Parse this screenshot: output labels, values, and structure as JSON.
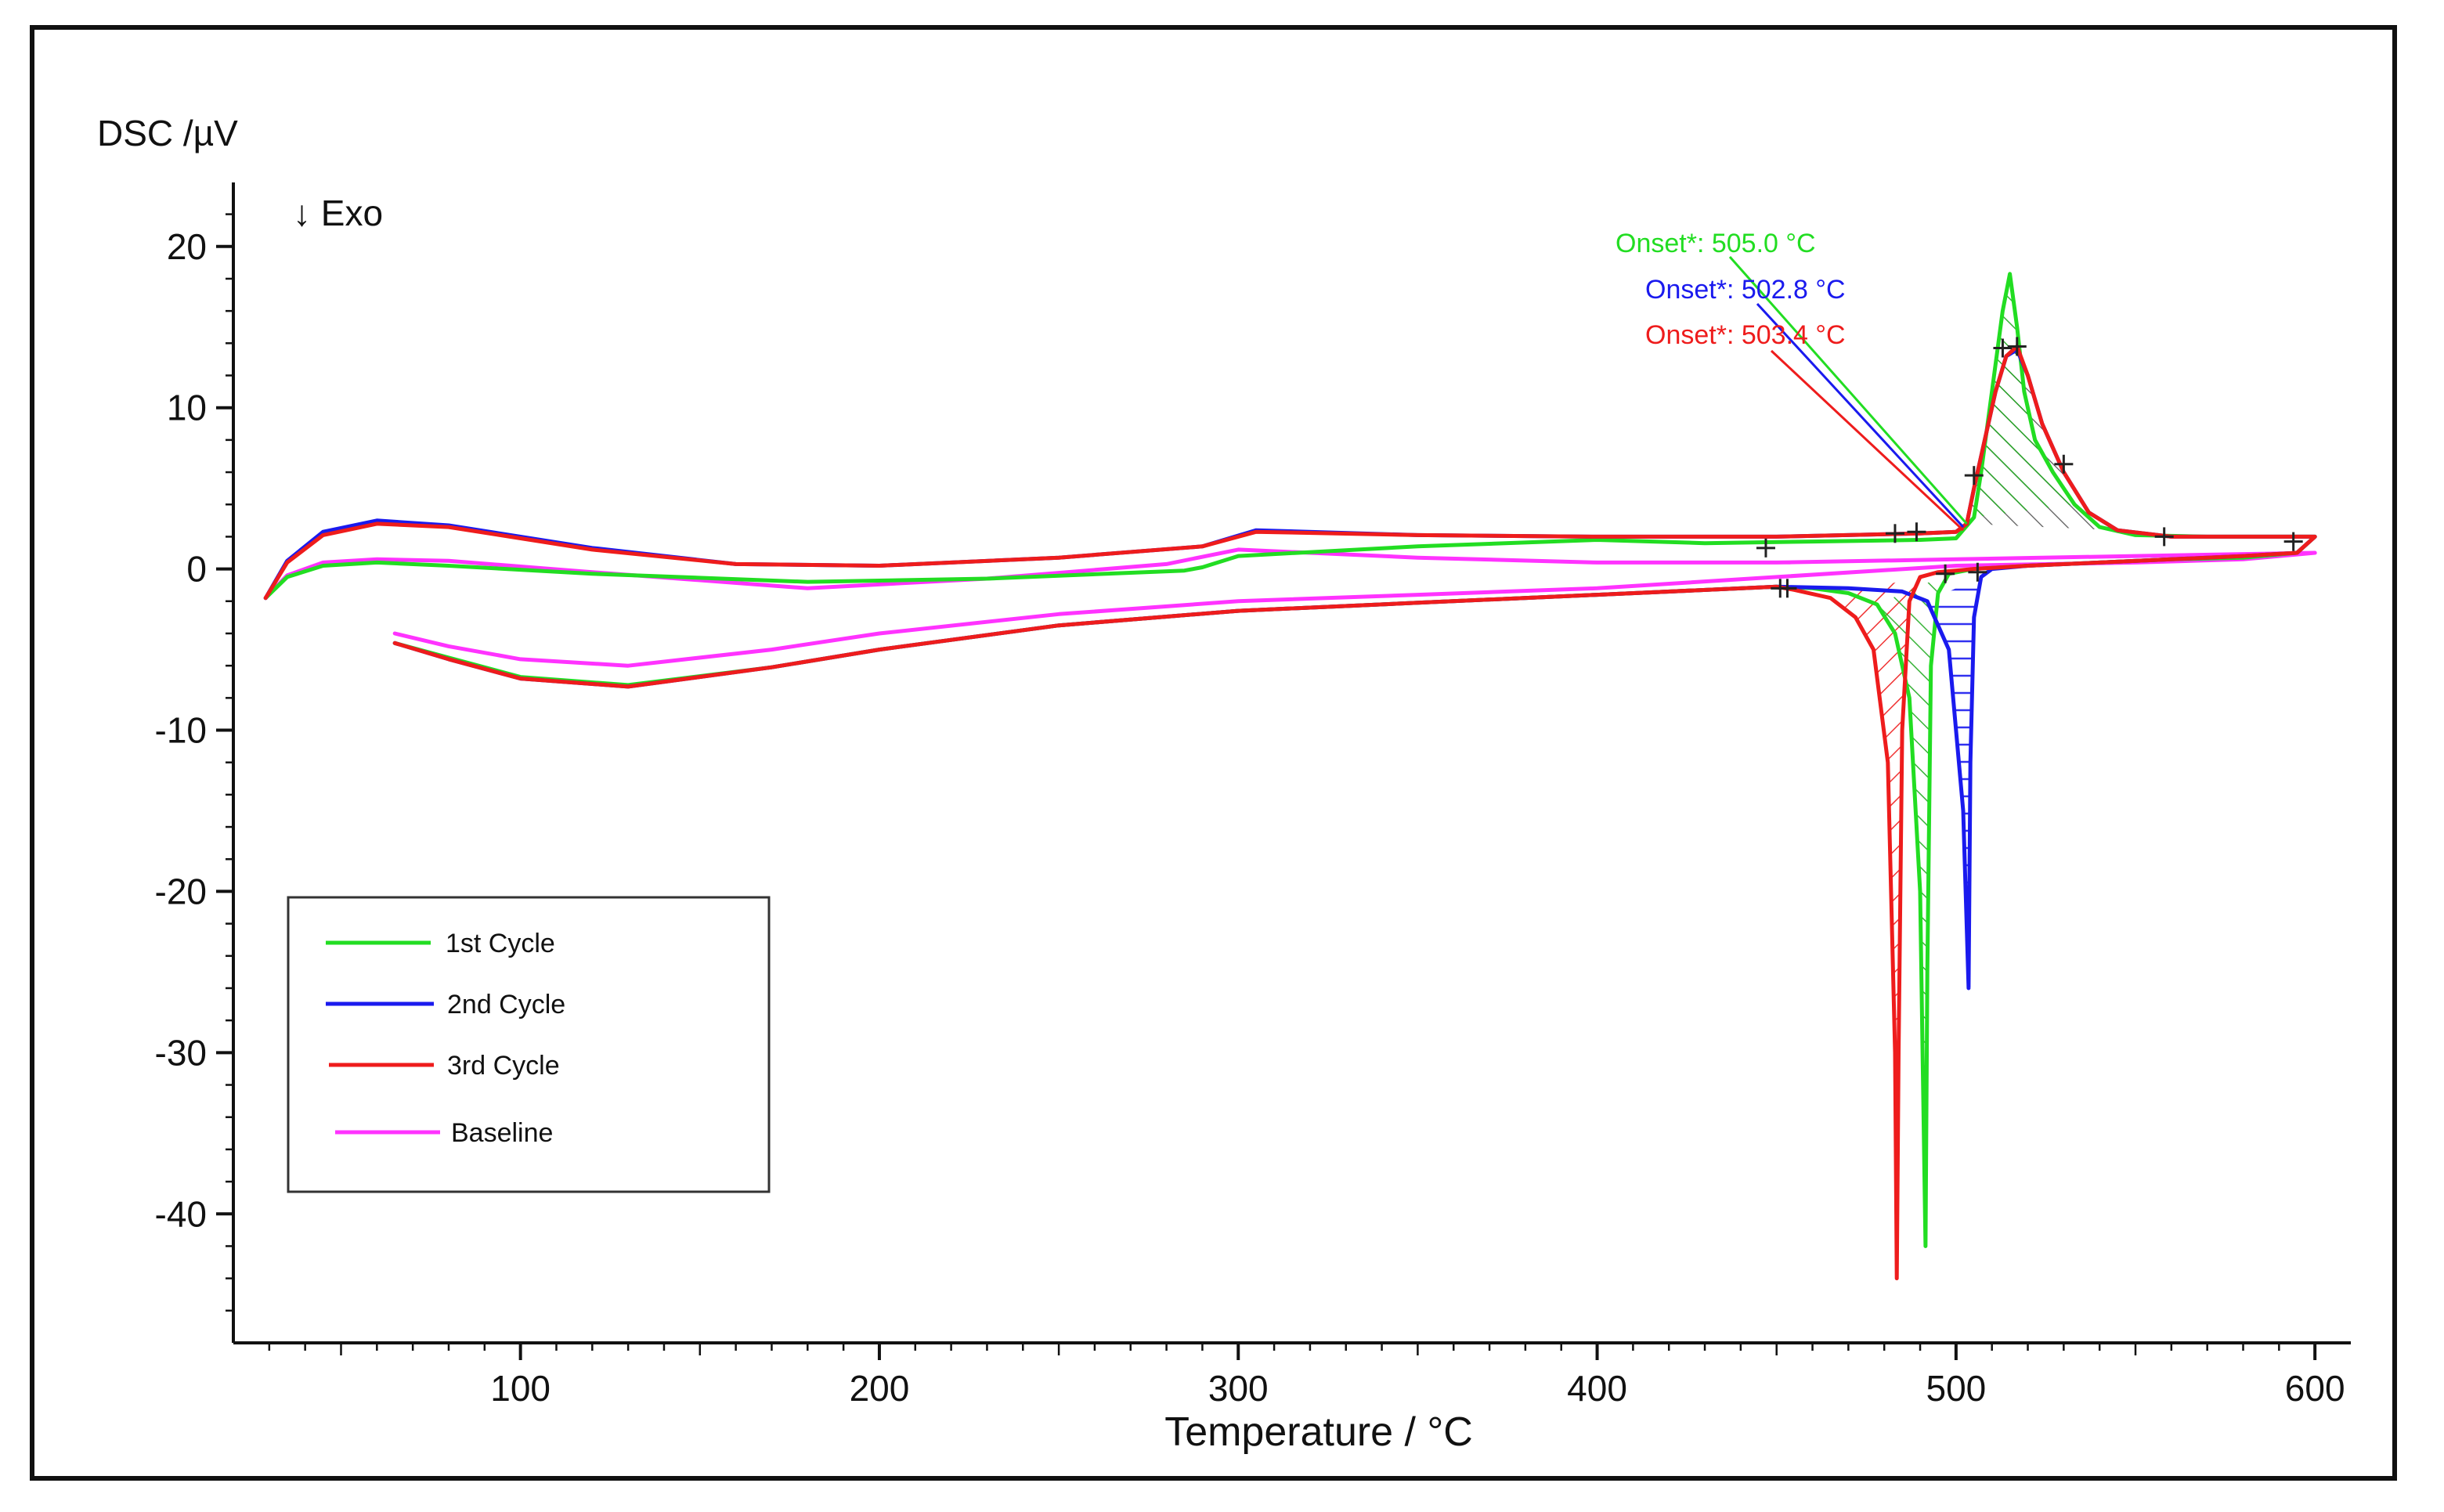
{
  "chart_data": {
    "type": "line",
    "title": "",
    "xlabel": "Temperature / °C",
    "ylabel": "DSC /µV",
    "annotation_exo": "↓ Exo",
    "xlim": [
      20,
      610
    ],
    "ylim": [
      -48,
      23
    ],
    "xticks": [
      100,
      200,
      300,
      400,
      500,
      600
    ],
    "yticks": [
      20,
      10,
      0,
      -10,
      -20,
      -30,
      -40
    ],
    "colors": {
      "first": "#22dd22",
      "second": "#1a1aee",
      "third": "#ee1c1c",
      "baseline": "#ff33ff"
    },
    "legend": {
      "placement": "lower-left",
      "entries": [
        "1st Cycle",
        "2nd Cycle",
        "3rd Cycle",
        "Baseline"
      ]
    },
    "annotations": [
      {
        "text": "Onset*: 505.0 °C",
        "series": "1st Cycle",
        "x": 503,
        "y": 2.8
      },
      {
        "text": "Onset*: 502.8 °C",
        "series": "2nd Cycle",
        "x": 502,
        "y": 2.6
      },
      {
        "text": "Onset*: 503.4 °C",
        "series": "3rd Cycle",
        "x": 502,
        "y": 2.4
      }
    ],
    "series": [
      {
        "name": "1st Cycle",
        "heating": [
          [
            29,
            -1.8
          ],
          [
            35,
            -0.5
          ],
          [
            45,
            0.2
          ],
          [
            60,
            0.4
          ],
          [
            80,
            0.2
          ],
          [
            120,
            -0.3
          ],
          [
            180,
            -0.8
          ],
          [
            230,
            -0.6
          ],
          [
            285,
            -0.1
          ],
          [
            290,
            0.1
          ],
          [
            300,
            0.8
          ],
          [
            350,
            1.4
          ],
          [
            400,
            1.8
          ],
          [
            430,
            1.6
          ],
          [
            460,
            1.7
          ],
          [
            490,
            1.8
          ],
          [
            500,
            1.9
          ],
          [
            505,
            3.2
          ],
          [
            507,
            6
          ],
          [
            510,
            11
          ],
          [
            513,
            16
          ],
          [
            515,
            18.3
          ],
          [
            517,
            15
          ],
          [
            519,
            11
          ],
          [
            522,
            8
          ],
          [
            527,
            6
          ],
          [
            533,
            4
          ],
          [
            540,
            2.6
          ],
          [
            550,
            2.1
          ],
          [
            570,
            2
          ],
          [
            600,
            2
          ]
        ],
        "cooling": [
          [
            600,
            2
          ],
          [
            595,
            1
          ],
          [
            580,
            0.7
          ],
          [
            560,
            0.6
          ],
          [
            540,
            0.4
          ],
          [
            520,
            0.2
          ],
          [
            505,
            0
          ],
          [
            498,
            -0.3
          ],
          [
            495,
            -1.5
          ],
          [
            493,
            -6
          ],
          [
            492,
            -25
          ],
          [
            491.5,
            -42
          ],
          [
            490,
            -20
          ],
          [
            487,
            -8
          ],
          [
            483,
            -4
          ],
          [
            478,
            -2.2
          ],
          [
            470,
            -1.5
          ],
          [
            460,
            -1.2
          ],
          [
            450,
            -1.1
          ],
          [
            400,
            -1.6
          ],
          [
            350,
            -2.1
          ],
          [
            300,
            -2.6
          ],
          [
            250,
            -3.5
          ],
          [
            200,
            -5
          ],
          [
            170,
            -6.1
          ],
          [
            130,
            -7.2
          ],
          [
            100,
            -6.7
          ],
          [
            80,
            -5.5
          ],
          [
            65,
            -4.6
          ]
        ]
      },
      {
        "name": "2nd Cycle",
        "heating": [
          [
            29,
            -1.8
          ],
          [
            35,
            0.5
          ],
          [
            45,
            2.3
          ],
          [
            60,
            3
          ],
          [
            80,
            2.7
          ],
          [
            120,
            1.3
          ],
          [
            160,
            0.3
          ],
          [
            200,
            0.2
          ],
          [
            250,
            0.7
          ],
          [
            290,
            1.4
          ],
          [
            305,
            2.4
          ],
          [
            350,
            2.1
          ],
          [
            400,
            2
          ],
          [
            450,
            2
          ],
          [
            490,
            2.2
          ],
          [
            500,
            2.3
          ],
          [
            503,
            2.8
          ],
          [
            505,
            5
          ],
          [
            508,
            8
          ],
          [
            511,
            11
          ],
          [
            514,
            13.2
          ],
          [
            517,
            13.6
          ],
          [
            520,
            12
          ],
          [
            524,
            9
          ],
          [
            530,
            6
          ],
          [
            537,
            3.5
          ],
          [
            545,
            2.4
          ],
          [
            560,
            2
          ],
          [
            580,
            2
          ],
          [
            600,
            2
          ]
        ],
        "cooling": [
          [
            600,
            2
          ],
          [
            595,
            1
          ],
          [
            580,
            0.8
          ],
          [
            560,
            0.6
          ],
          [
            540,
            0.4
          ],
          [
            520,
            0.2
          ],
          [
            510,
            0
          ],
          [
            507,
            -0.5
          ],
          [
            505,
            -3
          ],
          [
            504,
            -12
          ],
          [
            503.5,
            -26
          ],
          [
            502,
            -15
          ],
          [
            498,
            -5
          ],
          [
            492,
            -2
          ],
          [
            485,
            -1.4
          ],
          [
            470,
            -1.2
          ],
          [
            450,
            -1.1
          ],
          [
            400,
            -1.6
          ],
          [
            350,
            -2.1
          ],
          [
            300,
            -2.6
          ],
          [
            250,
            -3.5
          ],
          [
            200,
            -5
          ],
          [
            170,
            -6.1
          ],
          [
            130,
            -7.3
          ],
          [
            100,
            -6.8
          ],
          [
            80,
            -5.6
          ],
          [
            65,
            -4.6
          ]
        ]
      },
      {
        "name": "3rd Cycle",
        "heating": [
          [
            29,
            -1.8
          ],
          [
            35,
            0.4
          ],
          [
            45,
            2.1
          ],
          [
            60,
            2.8
          ],
          [
            80,
            2.6
          ],
          [
            120,
            1.2
          ],
          [
            160,
            0.3
          ],
          [
            200,
            0.2
          ],
          [
            250,
            0.7
          ],
          [
            290,
            1.4
          ],
          [
            305,
            2.3
          ],
          [
            350,
            2.1
          ],
          [
            400,
            2
          ],
          [
            450,
            2
          ],
          [
            490,
            2.2
          ],
          [
            500,
            2.3
          ],
          [
            503,
            2.8
          ],
          [
            505,
            5
          ],
          [
            508,
            8
          ],
          [
            511,
            11
          ],
          [
            514,
            13.2
          ],
          [
            517,
            13.8
          ],
          [
            520,
            12
          ],
          [
            524,
            9
          ],
          [
            530,
            6
          ],
          [
            537,
            3.5
          ],
          [
            545,
            2.4
          ],
          [
            560,
            2
          ],
          [
            580,
            2
          ],
          [
            600,
            2
          ]
        ],
        "cooling": [
          [
            600,
            2
          ],
          [
            595,
            1
          ],
          [
            580,
            0.8
          ],
          [
            560,
            0.6
          ],
          [
            540,
            0.4
          ],
          [
            520,
            0.2
          ],
          [
            505,
            0
          ],
          [
            495,
            -0.2
          ],
          [
            490,
            -0.5
          ],
          [
            487,
            -2
          ],
          [
            485,
            -10
          ],
          [
            484,
            -30
          ],
          [
            483.5,
            -44
          ],
          [
            483,
            -30
          ],
          [
            481,
            -12
          ],
          [
            477,
            -5
          ],
          [
            472,
            -3
          ],
          [
            465,
            -1.8
          ],
          [
            455,
            -1.3
          ],
          [
            450,
            -1.1
          ],
          [
            400,
            -1.6
          ],
          [
            350,
            -2.1
          ],
          [
            300,
            -2.6
          ],
          [
            250,
            -3.5
          ],
          [
            200,
            -5
          ],
          [
            170,
            -6.1
          ],
          [
            130,
            -7.3
          ],
          [
            100,
            -6.8
          ],
          [
            80,
            -5.6
          ],
          [
            65,
            -4.6
          ]
        ]
      },
      {
        "name": "Baseline",
        "heating": [
          [
            29,
            -1.8
          ],
          [
            35,
            -0.4
          ],
          [
            45,
            0.4
          ],
          [
            60,
            0.6
          ],
          [
            80,
            0.5
          ],
          [
            120,
            -0.2
          ],
          [
            180,
            -1.2
          ],
          [
            230,
            -0.6
          ],
          [
            280,
            0.3
          ],
          [
            300,
            1.2
          ],
          [
            350,
            0.7
          ],
          [
            400,
            0.4
          ],
          [
            450,
            0.4
          ],
          [
            500,
            0.6
          ],
          [
            550,
            0.8
          ],
          [
            600,
            1
          ]
        ],
        "cooling": [
          [
            600,
            1
          ],
          [
            580,
            0.6
          ],
          [
            550,
            0.4
          ],
          [
            500,
            0.2
          ],
          [
            450,
            -0.5
          ],
          [
            400,
            -1.2
          ],
          [
            350,
            -1.6
          ],
          [
            300,
            -2
          ],
          [
            250,
            -2.8
          ],
          [
            200,
            -4
          ],
          [
            170,
            -5
          ],
          [
            130,
            -6
          ],
          [
            100,
            -5.6
          ],
          [
            80,
            -4.8
          ],
          [
            65,
            -4
          ]
        ]
      }
    ]
  }
}
